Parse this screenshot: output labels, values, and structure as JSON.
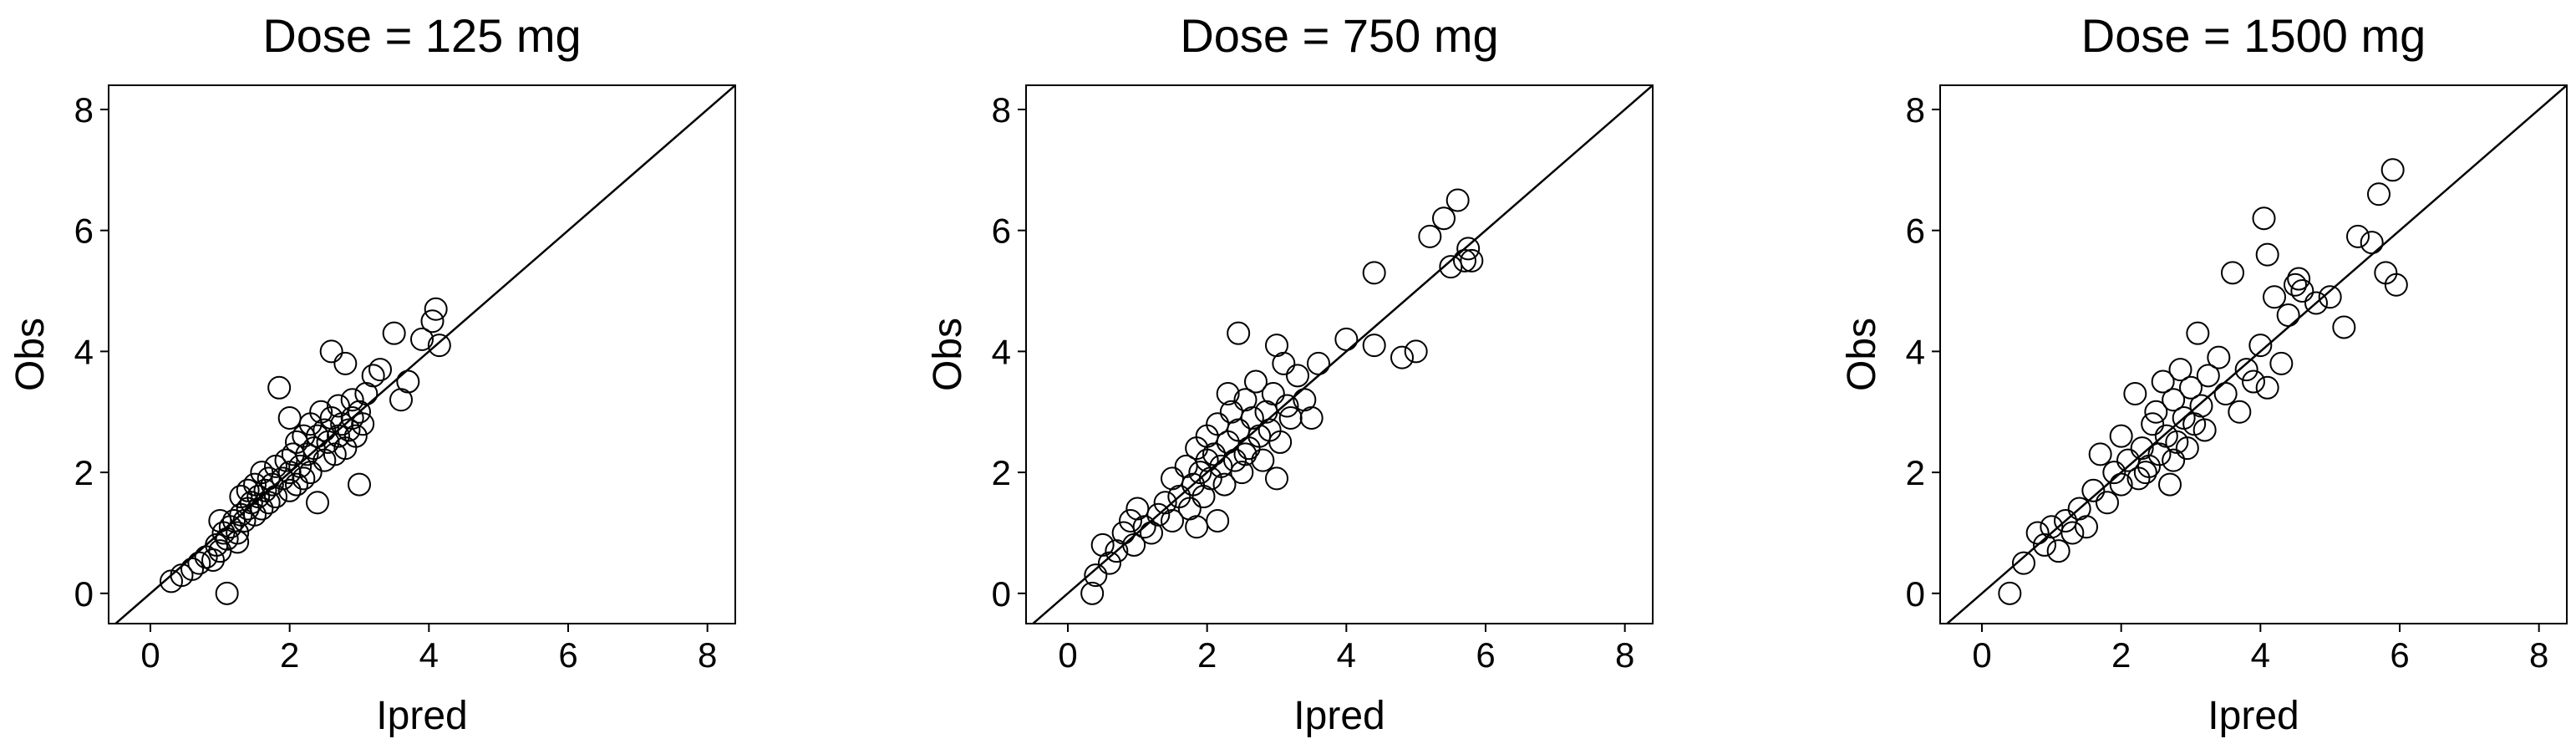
{
  "chart_data": [
    {
      "type": "scatter",
      "title": "Dose = 125 mg",
      "xlabel": "Ipred",
      "ylabel": "Obs",
      "xlim": [
        -0.6,
        8.4
      ],
      "ylim": [
        -0.5,
        8.4
      ],
      "xticks": [
        "0",
        "2",
        "4",
        "6",
        "8"
      ],
      "yticks": [
        "0",
        "2",
        "4",
        "6",
        "8"
      ],
      "reference_line": "y = x",
      "series": [
        {
          "name": "observations",
          "points": [
            [
              0.3,
              0.2
            ],
            [
              0.45,
              0.3
            ],
            [
              0.6,
              0.4
            ],
            [
              0.7,
              0.5
            ],
            [
              0.8,
              0.6
            ],
            [
              0.9,
              0.55
            ],
            [
              0.95,
              0.8
            ],
            [
              1.0,
              0.7
            ],
            [
              1.05,
              1.0
            ],
            [
              1.1,
              0.9
            ],
            [
              1.1,
              0.0
            ],
            [
              1.15,
              1.1
            ],
            [
              1.2,
              1.2
            ],
            [
              1.25,
              1.0
            ],
            [
              1.3,
              1.3
            ],
            [
              1.3,
              1.6
            ],
            [
              1.35,
              1.2
            ],
            [
              1.4,
              1.4
            ],
            [
              1.4,
              1.7
            ],
            [
              1.45,
              1.5
            ],
            [
              1.5,
              1.3
            ],
            [
              1.5,
              1.8
            ],
            [
              1.55,
              1.6
            ],
            [
              1.6,
              1.4
            ],
            [
              1.6,
              2.0
            ],
            [
              1.65,
              1.7
            ],
            [
              1.7,
              1.5
            ],
            [
              1.7,
              1.9
            ],
            [
              1.75,
              1.8
            ],
            [
              1.8,
              2.1
            ],
            [
              1.8,
              1.6
            ],
            [
              1.85,
              3.4
            ],
            [
              1.9,
              1.9
            ],
            [
              1.95,
              2.2
            ],
            [
              2.0,
              1.7
            ],
            [
              2.0,
              2.0
            ],
            [
              2.05,
              2.3
            ],
            [
              2.1,
              1.8
            ],
            [
              2.1,
              2.5
            ],
            [
              2.15,
              2.1
            ],
            [
              2.2,
              2.6
            ],
            [
              2.2,
              1.9
            ],
            [
              2.25,
              2.3
            ],
            [
              2.3,
              2.0
            ],
            [
              2.3,
              2.8
            ],
            [
              2.35,
              2.4
            ],
            [
              2.4,
              1.5
            ],
            [
              2.4,
              2.6
            ],
            [
              2.45,
              3.0
            ],
            [
              2.5,
              2.2
            ],
            [
              2.5,
              2.7
            ],
            [
              2.55,
              2.5
            ],
            [
              2.6,
              4.0
            ],
            [
              2.6,
              2.9
            ],
            [
              2.65,
              2.3
            ],
            [
              2.7,
              2.6
            ],
            [
              2.7,
              3.1
            ],
            [
              2.75,
              2.8
            ],
            [
              2.8,
              2.4
            ],
            [
              2.8,
              3.8
            ],
            [
              2.85,
              2.7
            ],
            [
              2.9,
              3.2
            ],
            [
              2.9,
              2.9
            ],
            [
              2.95,
              2.6
            ],
            [
              3.0,
              1.8
            ],
            [
              3.0,
              3.0
            ],
            [
              3.05,
              2.8
            ],
            [
              3.1,
              3.3
            ],
            [
              3.2,
              3.6
            ],
            [
              3.3,
              3.7
            ],
            [
              3.5,
              4.3
            ],
            [
              3.6,
              3.2
            ],
            [
              3.7,
              3.5
            ],
            [
              3.9,
              4.2
            ],
            [
              4.05,
              4.5
            ],
            [
              4.1,
              4.7
            ],
            [
              4.15,
              4.1
            ],
            [
              1.0,
              1.2
            ],
            [
              1.25,
              0.85
            ],
            [
              2.0,
              2.9
            ]
          ]
        }
      ]
    },
    {
      "type": "scatter",
      "title": "Dose = 750 mg",
      "xlabel": "Ipred",
      "ylabel": "Obs",
      "xlim": [
        -0.6,
        8.4
      ],
      "ylim": [
        -0.5,
        8.4
      ],
      "xticks": [
        "0",
        "2",
        "4",
        "6",
        "8"
      ],
      "yticks": [
        "0",
        "2",
        "4",
        "6",
        "8"
      ],
      "reference_line": "y = x",
      "series": [
        {
          "name": "observations",
          "points": [
            [
              0.35,
              0.0
            ],
            [
              0.4,
              0.3
            ],
            [
              0.5,
              0.8
            ],
            [
              0.6,
              0.5
            ],
            [
              0.7,
              0.7
            ],
            [
              0.8,
              1.0
            ],
            [
              0.9,
              1.2
            ],
            [
              0.95,
              0.8
            ],
            [
              1.0,
              1.4
            ],
            [
              1.1,
              1.1
            ],
            [
              1.2,
              1.0
            ],
            [
              1.3,
              1.3
            ],
            [
              1.4,
              1.5
            ],
            [
              1.5,
              1.2
            ],
            [
              1.5,
              1.9
            ],
            [
              1.6,
              1.6
            ],
            [
              1.7,
              2.1
            ],
            [
              1.75,
              1.4
            ],
            [
              1.8,
              1.8
            ],
            [
              1.85,
              2.4
            ],
            [
              1.9,
              2.0
            ],
            [
              1.95,
              1.6
            ],
            [
              2.0,
              2.2
            ],
            [
              2.0,
              2.6
            ],
            [
              2.05,
              1.9
            ],
            [
              2.1,
              2.3
            ],
            [
              2.15,
              2.8
            ],
            [
              2.2,
              2.1
            ],
            [
              2.25,
              1.8
            ],
            [
              2.3,
              2.5
            ],
            [
              2.35,
              3.0
            ],
            [
              2.4,
              2.2
            ],
            [
              2.45,
              4.3
            ],
            [
              2.45,
              2.7
            ],
            [
              2.5,
              2.0
            ],
            [
              2.55,
              3.2
            ],
            [
              2.6,
              2.4
            ],
            [
              2.65,
              2.9
            ],
            [
              2.7,
              3.5
            ],
            [
              2.75,
              2.6
            ],
            [
              2.8,
              2.2
            ],
            [
              2.85,
              3.0
            ],
            [
              2.9,
              2.7
            ],
            [
              2.95,
              3.3
            ],
            [
              3.0,
              1.9
            ],
            [
              3.0,
              4.1
            ],
            [
              3.05,
              2.5
            ],
            [
              3.1,
              3.8
            ],
            [
              3.15,
              3.1
            ],
            [
              3.2,
              2.9
            ],
            [
              3.3,
              3.6
            ],
            [
              3.4,
              3.2
            ],
            [
              3.5,
              2.9
            ],
            [
              3.6,
              3.8
            ],
            [
              4.0,
              4.2
            ],
            [
              4.4,
              5.3
            ],
            [
              4.4,
              4.1
            ],
            [
              4.8,
              3.9
            ],
            [
              5.0,
              4.0
            ],
            [
              5.2,
              5.9
            ],
            [
              5.4,
              6.2
            ],
            [
              5.6,
              6.5
            ],
            [
              5.7,
              5.5
            ],
            [
              5.75,
              5.7
            ],
            [
              5.8,
              5.5
            ],
            [
              5.5,
              5.4
            ],
            [
              2.3,
              3.3
            ],
            [
              2.55,
              2.3
            ],
            [
              2.15,
              1.2
            ],
            [
              1.85,
              1.1
            ]
          ]
        }
      ]
    },
    {
      "type": "scatter",
      "title": "Dose = 1500 mg",
      "xlabel": "Ipred",
      "ylabel": "Obs",
      "xlim": [
        -0.6,
        8.4
      ],
      "ylim": [
        -0.5,
        8.4
      ],
      "xticks": [
        "0",
        "2",
        "4",
        "6",
        "8"
      ],
      "yticks": [
        "0",
        "2",
        "4",
        "6",
        "8"
      ],
      "reference_line": "y = x",
      "series": [
        {
          "name": "observations",
          "points": [
            [
              0.4,
              0.0
            ],
            [
              0.6,
              0.5
            ],
            [
              0.8,
              1.0
            ],
            [
              0.9,
              0.8
            ],
            [
              1.0,
              1.1
            ],
            [
              1.1,
              0.7
            ],
            [
              1.2,
              1.2
            ],
            [
              1.3,
              1.0
            ],
            [
              1.4,
              1.4
            ],
            [
              1.5,
              1.1
            ],
            [
              1.6,
              1.7
            ],
            [
              1.7,
              2.3
            ],
            [
              1.8,
              1.5
            ],
            [
              1.9,
              2.0
            ],
            [
              2.0,
              2.6
            ],
            [
              2.0,
              1.8
            ],
            [
              2.1,
              2.2
            ],
            [
              2.2,
              3.3
            ],
            [
              2.25,
              1.9
            ],
            [
              2.3,
              2.4
            ],
            [
              2.4,
              2.1
            ],
            [
              2.45,
              2.8
            ],
            [
              2.5,
              3.0
            ],
            [
              2.55,
              2.3
            ],
            [
              2.6,
              3.5
            ],
            [
              2.65,
              2.6
            ],
            [
              2.7,
              1.8
            ],
            [
              2.75,
              3.2
            ],
            [
              2.8,
              2.5
            ],
            [
              2.85,
              3.7
            ],
            [
              2.9,
              2.9
            ],
            [
              2.95,
              2.4
            ],
            [
              3.0,
              3.4
            ],
            [
              3.05,
              2.8
            ],
            [
              3.1,
              4.3
            ],
            [
              3.15,
              3.1
            ],
            [
              3.2,
              2.7
            ],
            [
              3.4,
              3.9
            ],
            [
              3.5,
              3.3
            ],
            [
              3.6,
              5.3
            ],
            [
              3.7,
              3.0
            ],
            [
              3.8,
              3.7
            ],
            [
              3.9,
              3.5
            ],
            [
              4.0,
              4.1
            ],
            [
              4.05,
              6.2
            ],
            [
              4.1,
              3.4
            ],
            [
              4.2,
              4.9
            ],
            [
              4.3,
              3.8
            ],
            [
              4.4,
              4.6
            ],
            [
              4.5,
              5.1
            ],
            [
              4.6,
              5.0
            ],
            [
              4.8,
              4.8
            ],
            [
              5.0,
              4.9
            ],
            [
              5.2,
              4.4
            ],
            [
              5.4,
              5.9
            ],
            [
              5.6,
              5.8
            ],
            [
              5.7,
              6.6
            ],
            [
              5.8,
              5.3
            ],
            [
              5.9,
              7.0
            ],
            [
              5.95,
              5.1
            ],
            [
              2.35,
              2.0
            ],
            [
              2.75,
              2.2
            ],
            [
              3.25,
              3.6
            ],
            [
              4.1,
              5.6
            ],
            [
              4.55,
              5.2
            ]
          ]
        }
      ]
    }
  ]
}
